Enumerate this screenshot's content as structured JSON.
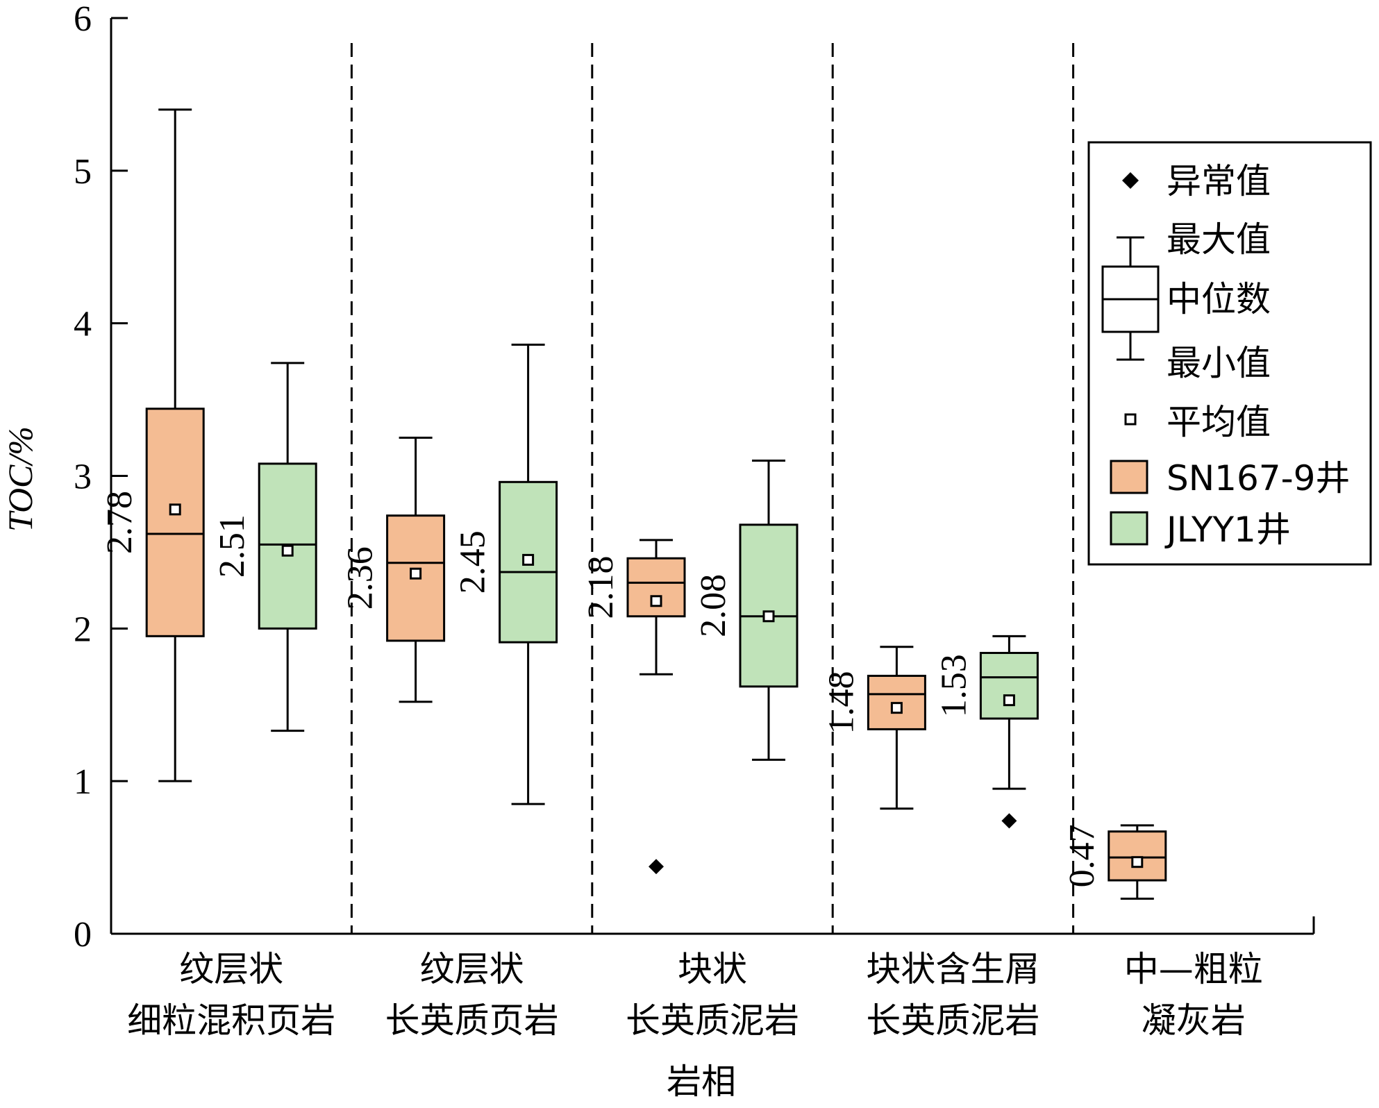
{
  "chart_data": {
    "type": "box",
    "ylabel": "TOC/%",
    "xlabel": "岩相",
    "ylim": [
      0,
      6
    ],
    "yticks": [
      0,
      1,
      2,
      3,
      4,
      5,
      6
    ],
    "categories": [
      {
        "line1": "纹层状",
        "line2": "细粒混积页岩"
      },
      {
        "line1": "纹层状",
        "line2": "长英质页岩"
      },
      {
        "line1": "块状",
        "line2": "长英质泥岩"
      },
      {
        "line1": "块状含生屑",
        "line2": "长英质泥岩"
      },
      {
        "line1": "中—粗粒",
        "line2": "凝灰岩"
      }
    ],
    "series": [
      {
        "name": "SN167-9井",
        "color": "#f4bc93",
        "boxes": [
          {
            "category": 0,
            "min": 1.0,
            "q1": 1.95,
            "median": 2.62,
            "q3": 3.44,
            "max": 5.4,
            "mean": 2.78,
            "mean_label": "2.78",
            "outliers": []
          },
          {
            "category": 1,
            "min": 1.52,
            "q1": 1.92,
            "median": 2.43,
            "q3": 2.74,
            "max": 3.25,
            "mean": 2.36,
            "mean_label": "2.36",
            "outliers": []
          },
          {
            "category": 2,
            "min": 1.7,
            "q1": 2.08,
            "median": 2.3,
            "q3": 2.46,
            "max": 2.58,
            "mean": 2.18,
            "mean_label": "2.18",
            "outliers": [
              0.44
            ]
          },
          {
            "category": 3,
            "min": 0.82,
            "q1": 1.34,
            "median": 1.57,
            "q3": 1.69,
            "max": 1.88,
            "mean": 1.48,
            "mean_label": "1.48",
            "outliers": []
          },
          {
            "category": 4,
            "min": 0.23,
            "q1": 0.35,
            "median": 0.5,
            "q3": 0.67,
            "max": 0.71,
            "mean": 0.47,
            "mean_label": "0.47",
            "outliers": []
          }
        ]
      },
      {
        "name": "JLYY1井",
        "color": "#c0e3b9",
        "boxes": [
          {
            "category": 0,
            "min": 1.33,
            "q1": 2.0,
            "median": 2.55,
            "q3": 3.08,
            "max": 3.74,
            "mean": 2.51,
            "mean_label": "2.51",
            "outliers": []
          },
          {
            "category": 1,
            "min": 0.85,
            "q1": 1.91,
            "median": 2.37,
            "q3": 2.96,
            "max": 3.86,
            "mean": 2.45,
            "mean_label": "2.45",
            "outliers": []
          },
          {
            "category": 2,
            "min": 1.14,
            "q1": 1.62,
            "median": 2.08,
            "q3": 2.68,
            "max": 3.1,
            "mean": 2.08,
            "mean_label": "2.08",
            "outliers": []
          },
          {
            "category": 3,
            "min": 0.95,
            "q1": 1.41,
            "median": 1.68,
            "q3": 1.84,
            "max": 1.95,
            "mean": 1.53,
            "mean_label": "1.53",
            "outliers": [
              0.74
            ]
          }
        ]
      }
    ],
    "legend": {
      "position": "top-right",
      "outlier": "异常值",
      "max": "最大值",
      "median": "中位数",
      "min": "最小值",
      "mean": "平均值"
    }
  }
}
